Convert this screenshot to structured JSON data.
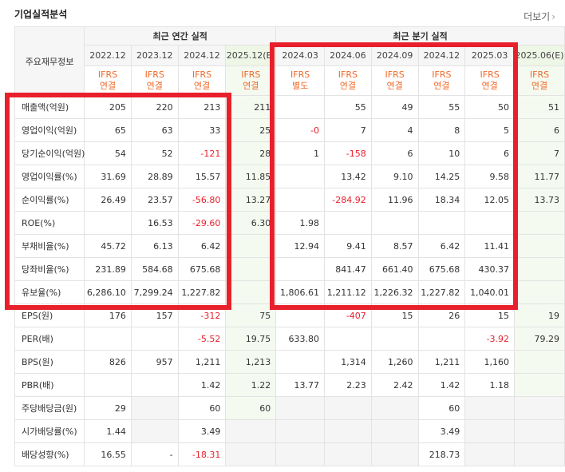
{
  "header": {
    "title": "기업실적분석",
    "more_label": "더보기",
    "more_icon": "chevron-right-icon"
  },
  "table": {
    "corner_label": "주요재무정보",
    "annual_group": "최근 연간 실적",
    "quarter_group": "최근 분기 실적",
    "periods": [
      {
        "label": "2022.12",
        "ifrs": [
          "IFRS",
          "연결"
        ],
        "estimate": false
      },
      {
        "label": "2023.12",
        "ifrs": [
          "IFRS",
          "연결"
        ],
        "estimate": false
      },
      {
        "label": "2024.12",
        "ifrs": [
          "IFRS",
          "연결"
        ],
        "estimate": false
      },
      {
        "label": "2025.12(E)",
        "ifrs": [
          "IFRS",
          "연결"
        ],
        "estimate": true
      },
      {
        "label": "2024.03",
        "ifrs": [
          "IFRS",
          "별도"
        ],
        "estimate": false
      },
      {
        "label": "2024.06",
        "ifrs": [
          "IFRS",
          "연결"
        ],
        "estimate": false
      },
      {
        "label": "2024.09",
        "ifrs": [
          "IFRS",
          "연결"
        ],
        "estimate": false
      },
      {
        "label": "2024.12",
        "ifrs": [
          "IFRS",
          "연결"
        ],
        "estimate": false
      },
      {
        "label": "2025.03",
        "ifrs": [
          "IFRS",
          "연결"
        ],
        "estimate": false
      },
      {
        "label": "2025.06(E)",
        "ifrs": [
          "IFRS",
          "연결"
        ],
        "estimate": true
      }
    ],
    "rows": [
      {
        "label": "매출액(억원)",
        "values": [
          "205",
          "220",
          "213",
          "211",
          "",
          "55",
          "49",
          "55",
          "50",
          "51"
        ]
      },
      {
        "label": "영업이익(억원)",
        "values": [
          "65",
          "63",
          "33",
          "25",
          "-0",
          "7",
          "4",
          "8",
          "5",
          "6"
        ]
      },
      {
        "label": "당기순이익(억원)",
        "values": [
          "54",
          "52",
          "-121",
          "28",
          "1",
          "-158",
          "6",
          "10",
          "6",
          "7"
        ]
      },
      {
        "label": "영업이익률(%)",
        "values": [
          "31.69",
          "28.89",
          "15.57",
          "11.85",
          "",
          "13.42",
          "9.10",
          "14.25",
          "9.58",
          "11.77"
        ]
      },
      {
        "label": "순이익률(%)",
        "values": [
          "26.49",
          "23.57",
          "-56.80",
          "13.27",
          "",
          "-284.92",
          "11.96",
          "18.34",
          "12.05",
          "13.73"
        ]
      },
      {
        "label": "ROE(%)",
        "values": [
          "",
          "16.53",
          "-29.60",
          "6.30",
          "1.98",
          "",
          "",
          "",
          "",
          ""
        ]
      },
      {
        "label": "부채비율(%)",
        "values": [
          "45.72",
          "6.13",
          "6.42",
          "",
          "12.94",
          "9.41",
          "8.57",
          "6.42",
          "11.41",
          ""
        ]
      },
      {
        "label": "당좌비율(%)",
        "values": [
          "231.89",
          "584.68",
          "675.68",
          "",
          "",
          "841.47",
          "661.40",
          "675.68",
          "430.37",
          ""
        ]
      },
      {
        "label": "유보율(%)",
        "values": [
          "6,286.10",
          "7,299.24",
          "1,227.82",
          "",
          "1,806.61",
          "1,211.12",
          "1,226.32",
          "1,227.82",
          "1,040.01",
          ""
        ]
      },
      {
        "label": "EPS(원)",
        "values": [
          "176",
          "157",
          "-312",
          "75",
          "",
          "-407",
          "15",
          "26",
          "15",
          "19"
        ]
      },
      {
        "label": "PER(배)",
        "values": [
          "",
          "",
          "-5.52",
          "19.75",
          "633.80",
          "",
          "",
          "",
          "-3.92",
          "79.29"
        ]
      },
      {
        "label": "BPS(원)",
        "values": [
          "826",
          "957",
          "1,211",
          "1,213",
          "",
          "1,314",
          "1,260",
          "1,211",
          "1,160",
          ""
        ]
      },
      {
        "label": "PBR(배)",
        "values": [
          "",
          "",
          "1.42",
          "1.22",
          "13.77",
          "2.23",
          "2.42",
          "1.42",
          "1.18",
          ""
        ]
      },
      {
        "label": "주당배당금(원)",
        "values": [
          "29",
          "",
          "60",
          "60",
          "",
          "",
          "",
          "60",
          "",
          ""
        ]
      },
      {
        "label": "시가배당률(%)",
        "values": [
          "1.44",
          "",
          "3.49",
          "",
          "",
          "",
          "",
          "3.49",
          "",
          ""
        ]
      },
      {
        "label": "배당성향(%)",
        "values": [
          "16.55",
          "-",
          "-18.31",
          "",
          "",
          "",
          "",
          "218.73",
          "",
          ""
        ]
      }
    ]
  },
  "colors": {
    "highlight": "#e8202c",
    "negative": "#e8202c",
    "ifrs": "#f06a2a",
    "estimate_bg": "#f5faf0"
  }
}
